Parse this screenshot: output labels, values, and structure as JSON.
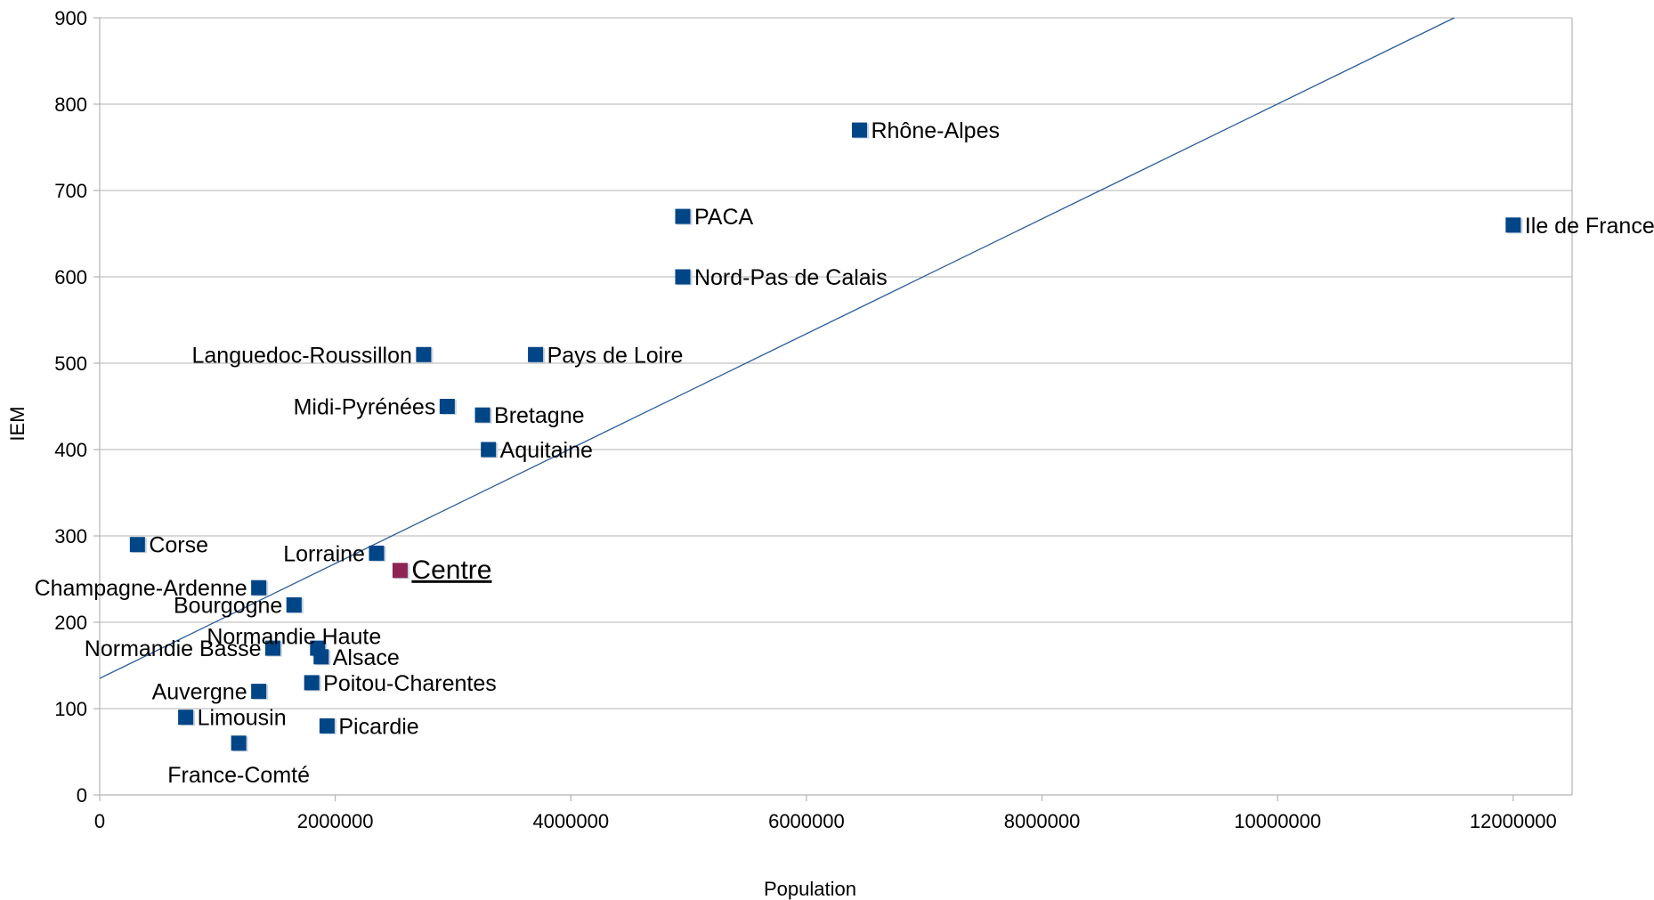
{
  "chart_data": {
    "type": "scatter",
    "title": "",
    "xlabel": "Population",
    "ylabel": "IEM",
    "xlim": [
      0,
      12500000
    ],
    "ylim": [
      0,
      900
    ],
    "xticks": [
      0,
      2000000,
      4000000,
      6000000,
      8000000,
      10000000,
      12000000
    ],
    "yticks": [
      0,
      100,
      200,
      300,
      400,
      500,
      600,
      700,
      800,
      900
    ],
    "grid": "horizontal",
    "legend": "none",
    "colors": {
      "point": "#004586",
      "highlight": "#8e2456",
      "trendline": "#2a5c9a",
      "grid": "#b3b3b3"
    },
    "trendline": {
      "type": "linear",
      "points": [
        [
          0,
          135
        ],
        [
          11500000,
          900
        ]
      ]
    },
    "points": [
      {
        "name": "Ile de France",
        "x": 12000000,
        "y": 660,
        "label_pos": "right"
      },
      {
        "name": "Rhône-Alpes",
        "x": 6450000,
        "y": 770,
        "label_pos": "right"
      },
      {
        "name": "PACA",
        "x": 4950000,
        "y": 670,
        "label_pos": "right"
      },
      {
        "name": "Nord-Pas de Calais",
        "x": 4950000,
        "y": 600,
        "label_pos": "right"
      },
      {
        "name": "Pays de Loire",
        "x": 3700000,
        "y": 510,
        "label_pos": "right"
      },
      {
        "name": "Languedoc-Roussillon",
        "x": 2750000,
        "y": 510,
        "label_pos": "left"
      },
      {
        "name": "Midi-Pyrénées",
        "x": 2950000,
        "y": 450,
        "label_pos": "left"
      },
      {
        "name": "Bretagne",
        "x": 3250000,
        "y": 440,
        "label_pos": "right"
      },
      {
        "name": "Aquitaine",
        "x": 3300000,
        "y": 400,
        "label_pos": "right"
      },
      {
        "name": "Corse",
        "x": 320000,
        "y": 290,
        "label_pos": "right"
      },
      {
        "name": "Lorraine",
        "x": 2350000,
        "y": 280,
        "label_pos": "left"
      },
      {
        "name": "Centre",
        "x": 2550000,
        "y": 260,
        "label_pos": "right",
        "highlight": true
      },
      {
        "name": "Champagne-Ardenne",
        "x": 1350000,
        "y": 240,
        "label_pos": "left"
      },
      {
        "name": "Bourgogne",
        "x": 1650000,
        "y": 220,
        "label_pos": "left"
      },
      {
        "name": "Normandie Haute",
        "x": 1650000,
        "y": 220,
        "label_pos": "below"
      },
      {
        "name": "Normandie Basse",
        "x": 1470000,
        "y": 170,
        "label_pos": "left"
      },
      {
        "name": "Alsace",
        "x": 1850000,
        "y": 170,
        "label_pos": "none"
      },
      {
        "name": "Alsace",
        "x": 1880000,
        "y": 160,
        "label_pos": "right"
      },
      {
        "name": "Poitou-Charentes",
        "x": 1800000,
        "y": 130,
        "label_pos": "right"
      },
      {
        "name": "Auvergne",
        "x": 1350000,
        "y": 120,
        "label_pos": "left"
      },
      {
        "name": "Limousin",
        "x": 730000,
        "y": 90,
        "label_pos": "right"
      },
      {
        "name": "Picardie",
        "x": 1930000,
        "y": 80,
        "label_pos": "right"
      },
      {
        "name": "France-Comté",
        "x": 1180000,
        "y": 60,
        "label_pos": "below"
      }
    ]
  }
}
